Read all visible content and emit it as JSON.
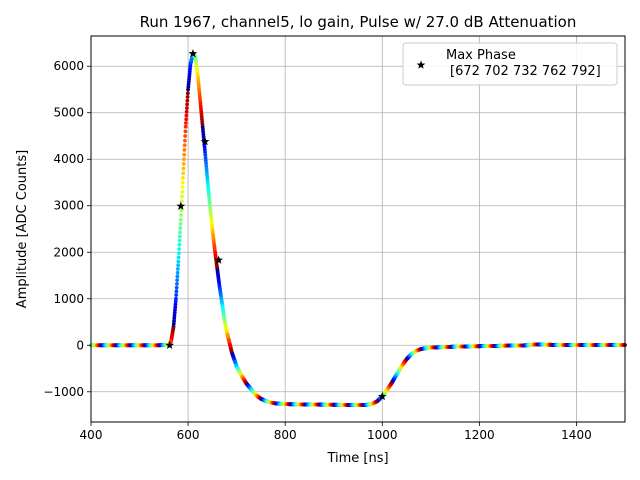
{
  "chart_data": {
    "type": "scatter",
    "title": "Run 1967, channel5, lo gain, Pulse w/ 27.0 dB Attenuation",
    "xlabel": "Time [ns]",
    "ylabel": "Amplitude [ADC Counts]",
    "xlim": [
      400,
      1500
    ],
    "ylim": [
      -1650,
      6650
    ],
    "xticks": [
      400,
      600,
      800,
      1000,
      1200,
      1400
    ],
    "yticks": [
      -1000,
      0,
      1000,
      2000,
      3000,
      4000,
      5000,
      6000
    ],
    "ytick_labels": [
      "−1000",
      "0",
      "1000",
      "2000",
      "3000",
      "4000",
      "5000",
      "6000"
    ],
    "grid": true,
    "colormap": "jet",
    "pulse_curve": [
      [
        400,
        0
      ],
      [
        540,
        0
      ],
      [
        560,
        10
      ],
      [
        565,
        80
      ],
      [
        570,
        400
      ],
      [
        575,
        1000
      ],
      [
        580,
        1800
      ],
      [
        585,
        2700
      ],
      [
        590,
        3700
      ],
      [
        595,
        4700
      ],
      [
        600,
        5500
      ],
      [
        605,
        6050
      ],
      [
        610,
        6270
      ],
      [
        615,
        6200
      ],
      [
        620,
        5800
      ],
      [
        625,
        5250
      ],
      [
        630,
        4700
      ],
      [
        635,
        4150
      ],
      [
        640,
        3550
      ],
      [
        645,
        3000
      ],
      [
        650,
        2500
      ],
      [
        655,
        2050
      ],
      [
        660,
        1650
      ],
      [
        665,
        1250
      ],
      [
        670,
        900
      ],
      [
        675,
        550
      ],
      [
        680,
        280
      ],
      [
        690,
        -150
      ],
      [
        700,
        -450
      ],
      [
        710,
        -650
      ],
      [
        720,
        -820
      ],
      [
        730,
        -950
      ],
      [
        740,
        -1070
      ],
      [
        750,
        -1150
      ],
      [
        760,
        -1200
      ],
      [
        770,
        -1230
      ],
      [
        780,
        -1250
      ],
      [
        800,
        -1265
      ],
      [
        840,
        -1275
      ],
      [
        900,
        -1280
      ],
      [
        950,
        -1285
      ],
      [
        970,
        -1280
      ],
      [
        980,
        -1260
      ],
      [
        990,
        -1200
      ],
      [
        1000,
        -1100
      ],
      [
        1010,
        -960
      ],
      [
        1020,
        -800
      ],
      [
        1030,
        -620
      ],
      [
        1040,
        -450
      ],
      [
        1050,
        -300
      ],
      [
        1060,
        -190
      ],
      [
        1070,
        -120
      ],
      [
        1080,
        -80
      ],
      [
        1100,
        -50
      ],
      [
        1150,
        -30
      ],
      [
        1200,
        -20
      ],
      [
        1300,
        0
      ],
      [
        1320,
        20
      ],
      [
        1340,
        10
      ],
      [
        1400,
        5
      ],
      [
        1500,
        5
      ]
    ],
    "max_phase_markers": [
      {
        "x": 562,
        "y": 0
      },
      {
        "x": 585,
        "y": 2990
      },
      {
        "x": 610,
        "y": 6270
      },
      {
        "x": 635,
        "y": 4380
      },
      {
        "x": 663,
        "y": 1830
      },
      {
        "x": 1000,
        "y": -1100
      }
    ],
    "legend": {
      "position": "top-right",
      "marker": "star",
      "title": "Max Phase",
      "text": "[672 702 732 762 792]"
    }
  }
}
